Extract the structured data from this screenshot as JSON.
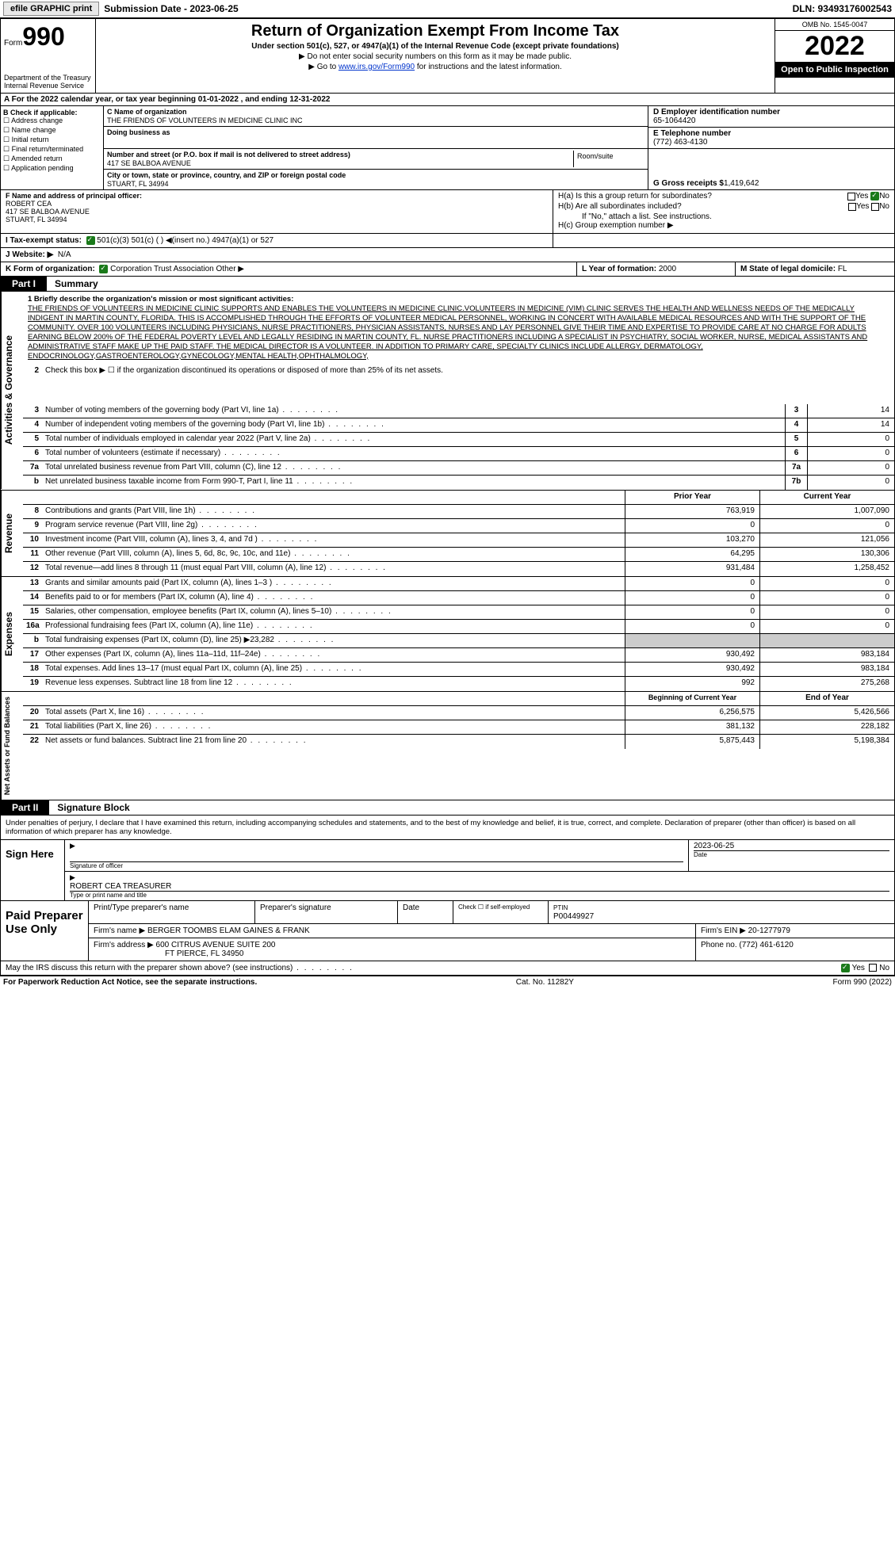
{
  "topbar": {
    "efile": "efile GRAPHIC print",
    "sub_label": "Submission Date - 2023-06-25",
    "dln": "DLN: 93493176002543"
  },
  "header": {
    "form_word": "Form",
    "form_num": "990",
    "dept1": "Department of the Treasury",
    "dept2": "Internal Revenue Service",
    "title": "Return of Organization Exempt From Income Tax",
    "sub": "Under section 501(c), 527, or 4947(a)(1) of the Internal Revenue Code (except private foundations)",
    "note1": "▶ Do not enter social security numbers on this form as it may be made public.",
    "note2_a": "▶ Go to ",
    "note2_link": "www.irs.gov/Form990",
    "note2_b": " for instructions and the latest information.",
    "omb": "OMB No. 1545-0047",
    "year": "2022",
    "inspection": "Open to Public Inspection"
  },
  "row_a": "A   For the 2022 calendar year, or tax year beginning 01-01-2022    , and ending 12-31-2022",
  "col_b": {
    "title": "B Check if applicable:",
    "items": [
      "Address change",
      "Name change",
      "Initial return",
      "Final return/terminated",
      "Amended return",
      "Application pending"
    ]
  },
  "col_c": {
    "name_label": "C Name of organization",
    "name": "THE FRIENDS OF VOLUNTEERS IN MEDICINE CLINIC INC",
    "dba_label": "Doing business as",
    "dba": "",
    "addr_label": "Number and street (or P.O. box if mail is not delivered to street address)",
    "addr": "417 SE BALBOA AVENUE",
    "room_label": "Room/suite",
    "city_label": "City or town, state or province, country, and ZIP or foreign postal code",
    "city": "STUART, FL  34994"
  },
  "col_d": {
    "ein_label": "D Employer identification number",
    "ein": "65-1064420",
    "tel_label": "E Telephone number",
    "tel": "(772) 463-4130",
    "gross_label": "G Gross receipts $",
    "gross": "1,419,642"
  },
  "col_f": {
    "label": "F  Name and address of principal officer:",
    "name": "ROBERT CEA",
    "addr1": "417 SE BALBOA AVENUE",
    "addr2": "STUART, FL  34994"
  },
  "col_h": {
    "ha": "H(a)  Is this a group return for subordinates?",
    "hb": "H(b)  Are all subordinates included?",
    "hb_note": "If \"No,\" attach a list. See instructions.",
    "hc": "H(c)  Group exemption number ▶"
  },
  "row_i": {
    "label": "I   Tax-exempt status:",
    "opts": "501(c)(3)        501(c) (  ) ◀(insert no.)        4947(a)(1) or        527"
  },
  "row_j": {
    "label": "J   Website: ▶",
    "val": "N/A"
  },
  "row_k": {
    "label": "K Form of organization:",
    "opts": "Corporation      Trust      Association      Other ▶"
  },
  "row_l": {
    "label": "L Year of formation:",
    "val": "2000"
  },
  "row_m": {
    "label": "M State of legal domicile:",
    "val": "FL"
  },
  "part1": {
    "num": "Part I",
    "title": "Summary"
  },
  "mission_label": "1   Briefly describe the organization's mission or most significant activities:",
  "mission": "THE FRIENDS OF VOLUNTEERS IN MEDICINE CLINIC SUPPORTS AND ENABLES THE VOLUNTEERS IN MEDICINE CLINIC.VOLUNTEERS IN MEDICINE (VIM) CLINIC SERVES THE HEALTH AND WELLNESS NEEDS OF THE MEDICALLY INDIGENT IN MARTIN COUNTY, FLORIDA. THIS IS ACCOMPLISHED THROUGH THE EFFORTS OF VOLUNTEER MEDICAL PERSONNEL, WORKING IN CONCERT WITH AVAILABLE MEDICAL RESOURCES AND WITH THE SUPPORT OF THE COMMUNITY. OVER 100 VOLUNTEERS INCLUDING PHYSICIANS, NURSE PRACTITIONERS, PHYSICIAN ASSISTANTS, NURSES AND LAY PERSONNEL GIVE THEIR TIME AND EXPERTISE TO PROVIDE CARE AT NO CHARGE FOR ADULTS EARNING BELOW 200% OF THE FEDERAL POVERTY LEVEL AND LEGALLY RESIDING IN MARTIN COUNTY, FL. NURSE PRACTITIONERS INCLUDING A SPECIALIST IN PSYCHIATRY, SOCIAL WORKER, NURSE, MEDICAL ASSISTANTS AND ADMINISTRATIVE STAFF MAKE UP THE PAID STAFF. THE MEDICAL DIRECTOR IS A VOLUNTEER. IN ADDITION TO PRIMARY CARE, SPECIALTY CLINICS INCLUDE ALLERGY, DERMATOLOGY, ENDOCRINOLOGY,GASTROENTEROLOGY,GYNECOLOGY,MENTAL HEALTH,OPHTHALMOLOGY,",
  "gov_lines": [
    {
      "n": "2",
      "d": "Check this box ▶ ☐ if the organization discontinued its operations or disposed of more than 25% of its net assets."
    },
    {
      "n": "3",
      "d": "Number of voting members of the governing body (Part VI, line 1a)",
      "box": "3",
      "v": "14"
    },
    {
      "n": "4",
      "d": "Number of independent voting members of the governing body (Part VI, line 1b)",
      "box": "4",
      "v": "14"
    },
    {
      "n": "5",
      "d": "Total number of individuals employed in calendar year 2022 (Part V, line 2a)",
      "box": "5",
      "v": "0"
    },
    {
      "n": "6",
      "d": "Total number of volunteers (estimate if necessary)",
      "box": "6",
      "v": "0"
    },
    {
      "n": "7a",
      "d": "Total unrelated business revenue from Part VIII, column (C), line 12",
      "box": "7a",
      "v": "0"
    },
    {
      "n": "b",
      "d": "Net unrelated business taxable income from Form 990-T, Part I, line 11",
      "box": "7b",
      "v": "0"
    }
  ],
  "rev_hdr": {
    "prior": "Prior Year",
    "curr": "Current Year"
  },
  "rev_lines": [
    {
      "n": "8",
      "d": "Contributions and grants (Part VIII, line 1h)",
      "p": "763,919",
      "c": "1,007,090"
    },
    {
      "n": "9",
      "d": "Program service revenue (Part VIII, line 2g)",
      "p": "0",
      "c": "0"
    },
    {
      "n": "10",
      "d": "Investment income (Part VIII, column (A), lines 3, 4, and 7d )",
      "p": "103,270",
      "c": "121,056"
    },
    {
      "n": "11",
      "d": "Other revenue (Part VIII, column (A), lines 5, 6d, 8c, 9c, 10c, and 11e)",
      "p": "64,295",
      "c": "130,306"
    },
    {
      "n": "12",
      "d": "Total revenue—add lines 8 through 11 (must equal Part VIII, column (A), line 12)",
      "p": "931,484",
      "c": "1,258,452"
    }
  ],
  "exp_lines": [
    {
      "n": "13",
      "d": "Grants and similar amounts paid (Part IX, column (A), lines 1–3 )",
      "p": "0",
      "c": "0"
    },
    {
      "n": "14",
      "d": "Benefits paid to or for members (Part IX, column (A), line 4)",
      "p": "0",
      "c": "0"
    },
    {
      "n": "15",
      "d": "Salaries, other compensation, employee benefits (Part IX, column (A), lines 5–10)",
      "p": "0",
      "c": "0"
    },
    {
      "n": "16a",
      "d": "Professional fundraising fees (Part IX, column (A), line 11e)",
      "p": "0",
      "c": "0"
    },
    {
      "n": "b",
      "d": "Total fundraising expenses (Part IX, column (D), line 25) ▶23,282",
      "p": "",
      "c": "",
      "shade": true
    },
    {
      "n": "17",
      "d": "Other expenses (Part IX, column (A), lines 11a–11d, 11f–24e)",
      "p": "930,492",
      "c": "983,184"
    },
    {
      "n": "18",
      "d": "Total expenses. Add lines 13–17 (must equal Part IX, column (A), line 25)",
      "p": "930,492",
      "c": "983,184"
    },
    {
      "n": "19",
      "d": "Revenue less expenses. Subtract line 18 from line 12",
      "p": "992",
      "c": "275,268"
    }
  ],
  "na_hdr": {
    "prior": "Beginning of Current Year",
    "curr": "End of Year"
  },
  "na_lines": [
    {
      "n": "20",
      "d": "Total assets (Part X, line 16)",
      "p": "6,256,575",
      "c": "5,426,566"
    },
    {
      "n": "21",
      "d": "Total liabilities (Part X, line 26)",
      "p": "381,132",
      "c": "228,182"
    },
    {
      "n": "22",
      "d": "Net assets or fund balances. Subtract line 21 from line 20",
      "p": "5,875,443",
      "c": "5,198,384"
    }
  ],
  "part2": {
    "num": "Part II",
    "title": "Signature Block"
  },
  "penalties": "Under penalties of perjury, I declare that I have examined this return, including accompanying schedules and statements, and to the best of my knowledge and belief, it is true, correct, and complete. Declaration of preparer (other than officer) is based on all information of which preparer has any knowledge.",
  "sign": {
    "here": "Sign Here",
    "sig_label": "Signature of officer",
    "date": "2023-06-25",
    "date_label": "Date",
    "name": "ROBERT CEA  TREASURER",
    "name_label": "Type or print name and title"
  },
  "prep": {
    "title": "Paid Preparer Use Only",
    "h1": "Print/Type preparer's name",
    "h2": "Preparer's signature",
    "h3": "Date",
    "h4": "Check ☐ if self-employed",
    "h5": "PTIN",
    "ptin": "P00449927",
    "firm_label": "Firm's name   ▶",
    "firm": "BERGER TOOMBS ELAM GAINES & FRANK",
    "ein_label": "Firm's EIN ▶",
    "ein": "20-1277979",
    "addr_label": "Firm's address ▶",
    "addr1": "600 CITRUS AVENUE SUITE 200",
    "addr2": "FT PIERCE, FL  34950",
    "phone_label": "Phone no.",
    "phone": "(772) 461-6120"
  },
  "discuss": "May the IRS discuss this return with the preparer shown above? (see instructions)",
  "footer": {
    "left": "For Paperwork Reduction Act Notice, see the separate instructions.",
    "mid": "Cat. No. 11282Y",
    "right": "Form 990 (2022)"
  }
}
